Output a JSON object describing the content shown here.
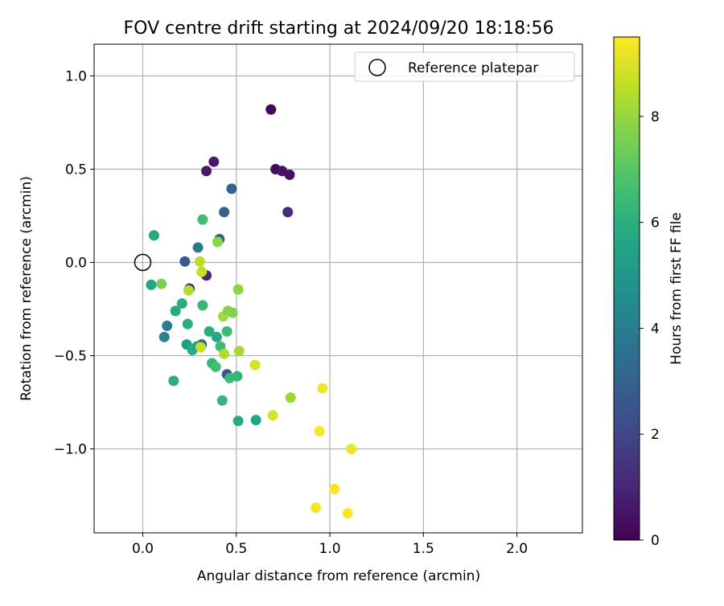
{
  "chart_data": {
    "type": "scatter",
    "title": "FOV centre drift starting at 2024/09/20 18:18:56",
    "xlabel": "Angular distance from reference (arcmin)",
    "ylabel": "Rotation from reference (arcmin)",
    "xlim": [
      -0.26,
      2.35
    ],
    "ylim": [
      -1.45,
      1.17
    ],
    "xticks": [
      0.0,
      0.5,
      1.0,
      1.5,
      2.0
    ],
    "xtick_labels": [
      "0.0",
      "0.5",
      "1.0",
      "1.5",
      "2.0"
    ],
    "yticks": [
      1.0,
      0.5,
      0.0,
      -0.5,
      -1.0
    ],
    "ytick_labels": [
      "1.0",
      "0.5",
      "0.0",
      "−0.5",
      "−1.0"
    ],
    "grid": true,
    "legend": {
      "position": "top-right",
      "entries": [
        "Reference platepar"
      ]
    },
    "reference_point": {
      "x": 0.0,
      "y": 0.0,
      "label": "Reference platepar"
    },
    "colorbar": {
      "label": "Hours from first FF file",
      "colormap": "viridis",
      "range": [
        0,
        9.5
      ],
      "ticks": [
        0,
        2,
        4,
        6,
        8
      ],
      "tick_labels": [
        "0",
        "2",
        "4",
        "6",
        "8"
      ]
    },
    "points": [
      {
        "x": 0.685,
        "y": 0.82,
        "c": 0.1
      },
      {
        "x": 0.71,
        "y": 0.5,
        "c": 0.3
      },
      {
        "x": 0.745,
        "y": 0.49,
        "c": 0.5
      },
      {
        "x": 0.785,
        "y": 0.47,
        "c": 0.4
      },
      {
        "x": 0.38,
        "y": 0.54,
        "c": 0.7
      },
      {
        "x": 0.34,
        "y": 0.49,
        "c": 0.6
      },
      {
        "x": 0.775,
        "y": 0.27,
        "c": 1.2
      },
      {
        "x": 0.34,
        "y": -0.07,
        "c": 1.0
      },
      {
        "x": 0.25,
        "y": -0.14,
        "c": 1.5
      },
      {
        "x": 0.475,
        "y": 0.395,
        "c": 3.0
      },
      {
        "x": 0.435,
        "y": 0.27,
        "c": 3.0
      },
      {
        "x": 0.41,
        "y": 0.125,
        "c": 3.0
      },
      {
        "x": 0.225,
        "y": 0.005,
        "c": 2.8
      },
      {
        "x": 0.295,
        "y": 0.08,
        "c": 3.8
      },
      {
        "x": 0.45,
        "y": -0.6,
        "c": 2.5
      },
      {
        "x": 0.315,
        "y": -0.44,
        "c": 3.0
      },
      {
        "x": 0.13,
        "y": -0.34,
        "c": 4.0
      },
      {
        "x": 0.115,
        "y": -0.4,
        "c": 4.2
      },
      {
        "x": 0.06,
        "y": 0.145,
        "c": 5.8
      },
      {
        "x": 0.045,
        "y": -0.12,
        "c": 5.6
      },
      {
        "x": 0.175,
        "y": -0.26,
        "c": 5.8
      },
      {
        "x": 0.21,
        "y": -0.22,
        "c": 5.9
      },
      {
        "x": 0.24,
        "y": -0.33,
        "c": 5.9
      },
      {
        "x": 0.235,
        "y": -0.44,
        "c": 5.2
      },
      {
        "x": 0.265,
        "y": -0.47,
        "c": 5.9
      },
      {
        "x": 0.29,
        "y": -0.45,
        "c": 5.4
      },
      {
        "x": 0.32,
        "y": -0.23,
        "c": 6.3
      },
      {
        "x": 0.355,
        "y": -0.37,
        "c": 5.9
      },
      {
        "x": 0.395,
        "y": -0.4,
        "c": 5.7
      },
      {
        "x": 0.37,
        "y": -0.54,
        "c": 6.3
      },
      {
        "x": 0.39,
        "y": -0.56,
        "c": 6.6
      },
      {
        "x": 0.415,
        "y": -0.45,
        "c": 6.5
      },
      {
        "x": 0.45,
        "y": -0.37,
        "c": 6.5
      },
      {
        "x": 0.465,
        "y": -0.62,
        "c": 6.4
      },
      {
        "x": 0.505,
        "y": -0.61,
        "c": 6.2
      },
      {
        "x": 0.425,
        "y": -0.74,
        "c": 6.3
      },
      {
        "x": 0.165,
        "y": -0.635,
        "c": 6.0
      },
      {
        "x": 0.51,
        "y": -0.85,
        "c": 5.8
      },
      {
        "x": 0.605,
        "y": -0.845,
        "c": 5.6
      },
      {
        "x": 0.32,
        "y": 0.23,
        "c": 6.6
      },
      {
        "x": 0.1,
        "y": -0.115,
        "c": 7.6
      },
      {
        "x": 0.4,
        "y": 0.11,
        "c": 7.8
      },
      {
        "x": 0.245,
        "y": -0.15,
        "c": 8.4
      },
      {
        "x": 0.305,
        "y": 0.005,
        "c": 8.5
      },
      {
        "x": 0.315,
        "y": -0.05,
        "c": 8.7
      },
      {
        "x": 0.43,
        "y": -0.29,
        "c": 8.2
      },
      {
        "x": 0.455,
        "y": -0.26,
        "c": 7.8
      },
      {
        "x": 0.48,
        "y": -0.27,
        "c": 7.7
      },
      {
        "x": 0.51,
        "y": -0.145,
        "c": 7.9
      },
      {
        "x": 0.435,
        "y": -0.49,
        "c": 8.3
      },
      {
        "x": 0.515,
        "y": -0.475,
        "c": 8.2
      },
      {
        "x": 0.31,
        "y": -0.455,
        "c": 8.7
      },
      {
        "x": 0.6,
        "y": -0.55,
        "c": 8.9
      },
      {
        "x": 0.79,
        "y": -0.725,
        "c": 8.1
      },
      {
        "x": 0.695,
        "y": -0.82,
        "c": 8.9
      },
      {
        "x": 0.96,
        "y": -0.675,
        "c": 9.3
      },
      {
        "x": 0.945,
        "y": -0.905,
        "c": 9.4
      },
      {
        "x": 1.115,
        "y": -1.0,
        "c": 9.3
      },
      {
        "x": 1.025,
        "y": -1.215,
        "c": 9.4
      },
      {
        "x": 0.925,
        "y": -1.315,
        "c": 9.4
      },
      {
        "x": 1.095,
        "y": -1.345,
        "c": 9.5
      }
    ]
  }
}
